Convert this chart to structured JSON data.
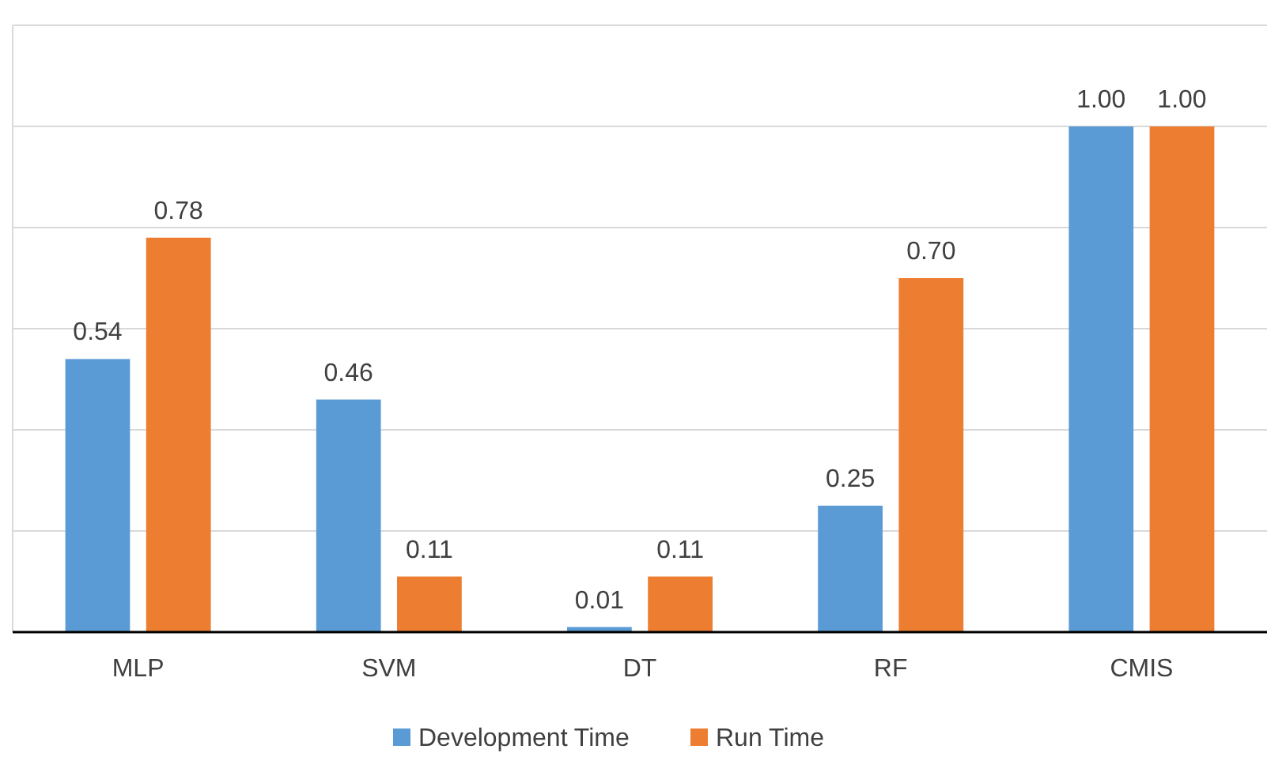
{
  "chart_data": {
    "type": "bar",
    "categories": [
      "MLP",
      "SVM",
      "DT",
      "RF",
      "CMIS"
    ],
    "series": [
      {
        "name": "Development Time",
        "color": "#5b9bd5",
        "values": [
          0.54,
          0.46,
          0.01,
          0.25,
          1.0
        ],
        "value_labels": [
          "0.54",
          "0.46",
          "0.01",
          "0.25",
          "1.00"
        ]
      },
      {
        "name": "Run Time",
        "color": "#ed7d31",
        "values": [
          0.78,
          0.11,
          0.11,
          0.7,
          1.0
        ],
        "value_labels": [
          "0.78",
          "0.11",
          "0.11",
          "0.70",
          "1.00"
        ]
      }
    ],
    "ylim": [
      0,
      1.2
    ],
    "yticks": [
      {
        "value": 0,
        "label": null
      },
      {
        "value": 0.2,
        "label": null
      },
      {
        "value": 0.4,
        "label": null
      },
      {
        "value": 0.6,
        "label": null
      },
      {
        "value": 0.8,
        "label": null
      },
      {
        "value": 1.0,
        "label": null
      },
      {
        "value": 1.2,
        "label": null
      }
    ],
    "grid": "y",
    "tick_labels": "x",
    "legend": "bottom"
  }
}
